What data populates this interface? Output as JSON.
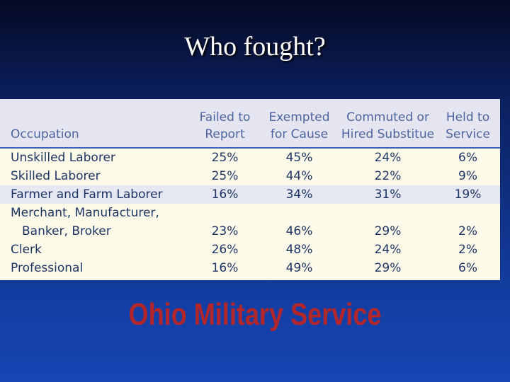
{
  "title": "Who fought?",
  "table": {
    "headers": [
      "Occupation",
      "Failed to\nReport",
      "Exempted\nfor Cause",
      "Commuted or\nHired Substitue",
      "Held to\nService"
    ],
    "rows": [
      [
        "Unskilled Laborer",
        "25%",
        "45%",
        "24%",
        "6%"
      ],
      [
        "Skilled Laborer",
        "25%",
        "44%",
        "22%",
        "9%"
      ],
      [
        "Farmer and Farm Laborer",
        "16%",
        "34%",
        "31%",
        "19%"
      ],
      [
        "Merchant, Manufacturer,\nBanker, Broker",
        "23%",
        "46%",
        "29%",
        "2%"
      ],
      [
        "Clerk",
        "26%",
        "48%",
        "24%",
        "2%"
      ],
      [
        "Professional",
        "16%",
        "49%",
        "29%",
        "6%"
      ]
    ]
  },
  "caption": "Ohio Military Service"
}
